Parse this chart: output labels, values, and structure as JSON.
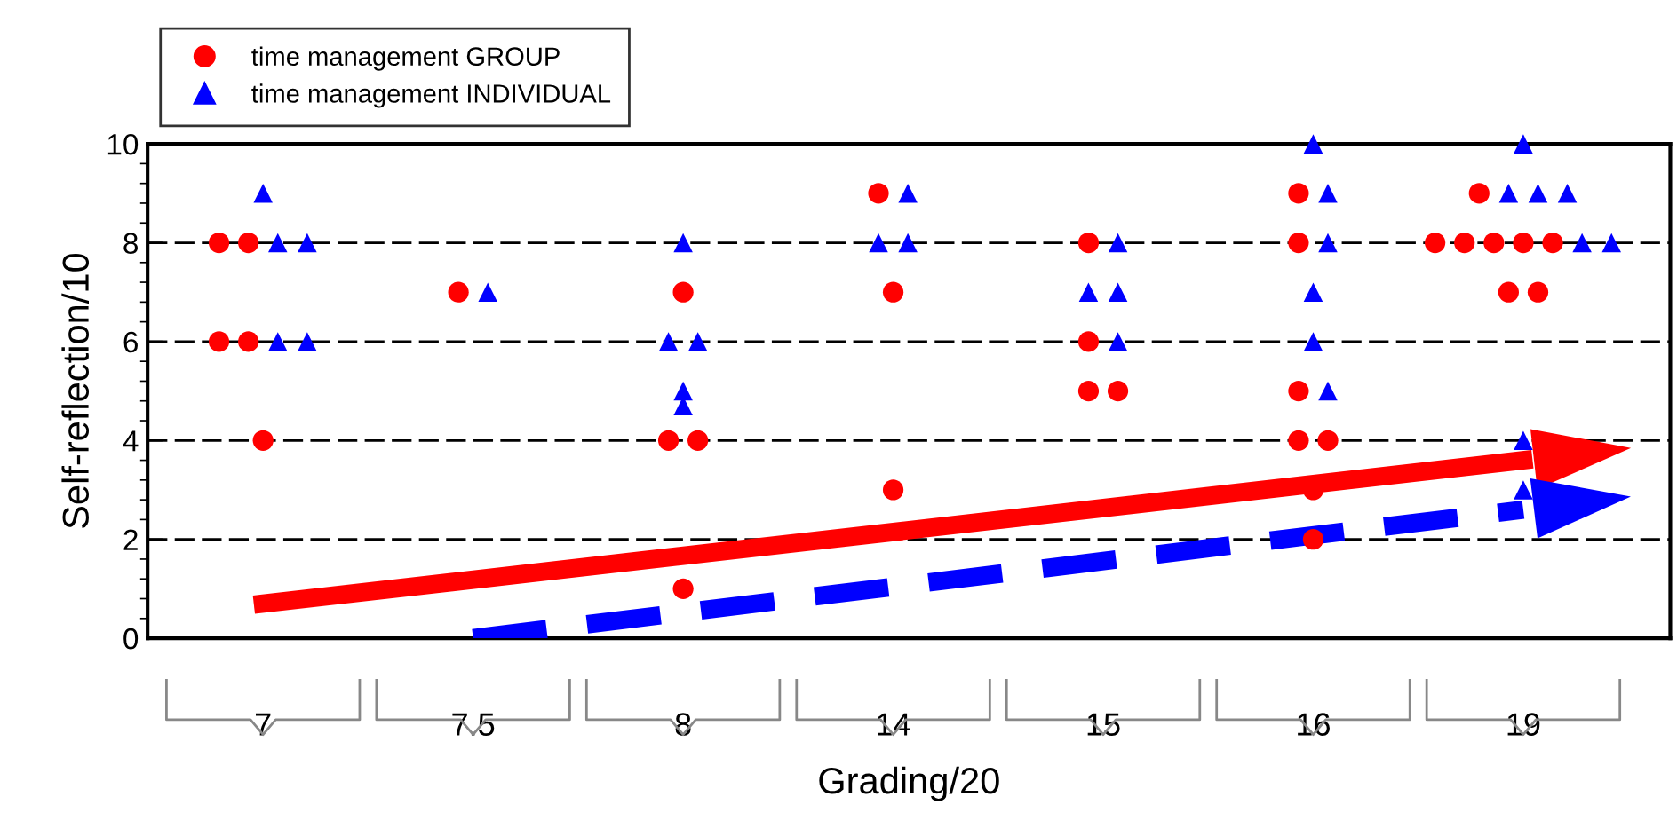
{
  "chart_data": {
    "type": "scatter",
    "xlabel": "Grading/20",
    "ylabel": "Self-reflection/10",
    "categories": [
      "7",
      "7.5",
      "8",
      "14",
      "15",
      "16",
      "19"
    ],
    "ylim": [
      0,
      10
    ],
    "yticks": [
      0,
      2,
      4,
      6,
      8,
      10
    ],
    "grid": "y",
    "legend": "top left",
    "series": [
      {
        "name": "time management GROUP",
        "marker": "circle",
        "color": "#ff0000",
        "x": [
          "7",
          "7",
          "7",
          "7",
          "7",
          "7.5",
          "8",
          "8",
          "8",
          "8",
          "14",
          "14",
          "14",
          "15",
          "15",
          "15",
          "15",
          "16",
          "16",
          "16",
          "16",
          "16",
          "16",
          "16",
          "19",
          "19",
          "19",
          "19",
          "19",
          "19",
          "19",
          "19"
        ],
        "values": [
          8,
          6,
          8,
          6,
          4,
          7,
          4,
          7,
          4,
          1,
          7,
          3,
          9,
          8,
          6,
          5,
          5,
          5,
          4,
          3,
          2,
          9,
          8,
          4,
          9,
          8,
          7,
          8,
          7,
          8,
          8,
          8
        ]
      },
      {
        "name": "time management INDIVIDUAL",
        "marker": "triangle",
        "color": "#0000ff",
        "x": [
          "7",
          "7",
          "7",
          "7",
          "7",
          "7.5",
          "8",
          "8",
          "8",
          "8",
          "8",
          "14",
          "14",
          "14",
          "15",
          "15",
          "15",
          "15",
          "16",
          "16",
          "16",
          "16",
          "16",
          "16",
          "19",
          "19",
          "19",
          "19",
          "19",
          "19",
          "19",
          "19"
        ],
        "values": [
          8,
          6,
          8,
          6,
          9,
          7,
          6,
          8,
          6,
          5,
          4.7,
          9,
          8,
          8,
          7,
          8,
          7,
          6,
          10,
          9,
          8,
          7,
          6,
          5,
          10,
          4,
          3,
          9,
          9,
          9,
          8,
          8
        ]
      },
      {
        "type": "line",
        "line_style": "solid",
        "color": "#ff0000",
        "x": [
          "7",
          "19"
        ],
        "values": [
          0.7,
          3.6
        ]
      },
      {
        "type": "line",
        "line_style": "dashed",
        "color": "#0000ff",
        "x": [
          "7.5",
          "19"
        ],
        "values": [
          0,
          2.6
        ]
      }
    ]
  }
}
